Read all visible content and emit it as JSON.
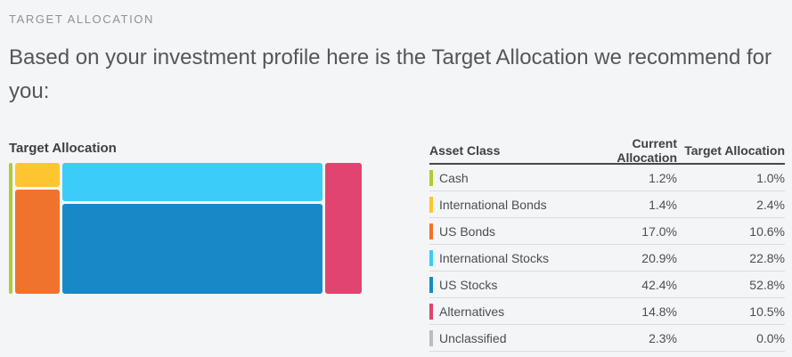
{
  "page": {
    "section_label": "TARGET ALLOCATION",
    "heading": "Based on your investment profile here is the Target Allocation we recommend for you:"
  },
  "chart": {
    "title": "Target Allocation"
  },
  "chart_data": {
    "type": "treemap",
    "title": "Target Allocation",
    "value_label": "Target Allocation %",
    "series": [
      {
        "name": "Cash",
        "value": 1.0,
        "color": "#b3cb33"
      },
      {
        "name": "International Bonds",
        "value": 2.4,
        "color": "#fdc52f"
      },
      {
        "name": "US Bonds",
        "value": 10.6,
        "color": "#f0732d"
      },
      {
        "name": "International Stocks",
        "value": 22.8,
        "color": "#3bcdf9"
      },
      {
        "name": "US Stocks",
        "value": 52.8,
        "color": "#1989c6"
      },
      {
        "name": "Alternatives",
        "value": 10.5,
        "color": "#e1446f"
      },
      {
        "name": "Unclassified",
        "value": 0.0,
        "color": "#b9bdc1"
      }
    ],
    "layout_columns": [
      [
        "Cash"
      ],
      [
        "International Bonds",
        "US Bonds"
      ],
      [
        "International Stocks",
        "US Stocks"
      ],
      [
        "Alternatives"
      ],
      [
        "Unclassified"
      ]
    ]
  },
  "table": {
    "columns": [
      "Asset Class",
      "Current Allocation",
      "Target Allocation"
    ],
    "rows": [
      {
        "name": "Cash",
        "color": "#b3cb33",
        "current": "1.2%",
        "target": "1.0%"
      },
      {
        "name": "International Bonds",
        "color": "#fdc52f",
        "current": "1.4%",
        "target": "2.4%"
      },
      {
        "name": "US Bonds",
        "color": "#f0732d",
        "current": "17.0%",
        "target": "10.6%"
      },
      {
        "name": "International Stocks",
        "color": "#3bcdf9",
        "current": "20.9%",
        "target": "22.8%"
      },
      {
        "name": "US Stocks",
        "color": "#1989c6",
        "current": "42.4%",
        "target": "52.8%"
      },
      {
        "name": "Alternatives",
        "color": "#e1446f",
        "current": "14.8%",
        "target": "10.5%"
      },
      {
        "name": "Unclassified",
        "color": "#b9bdc1",
        "current": "2.3%",
        "target": "0.0%"
      }
    ]
  }
}
